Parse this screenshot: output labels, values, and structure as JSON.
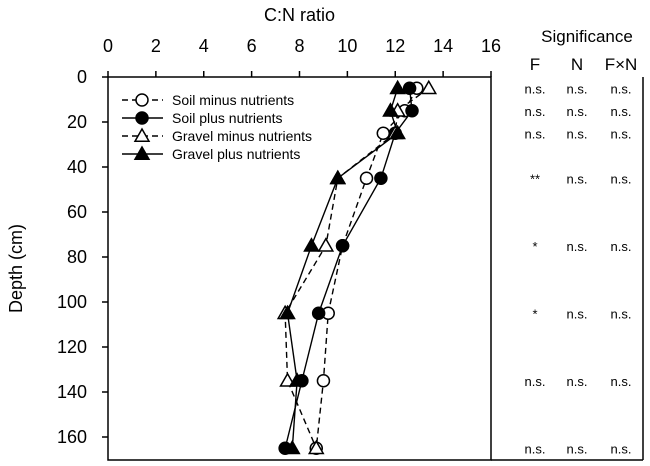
{
  "chart_data": {
    "type": "line",
    "xlabel": "C:N ratio",
    "ylabel": "Depth (cm)",
    "xlim": [
      0,
      16
    ],
    "ylim": [
      0,
      170
    ],
    "x_axis_position": "top",
    "y_axis_inverted": true,
    "xticks": [
      "0",
      "2",
      "4",
      "6",
      "8",
      "10",
      "12",
      "14",
      "16"
    ],
    "yticks": [
      "0",
      "20",
      "40",
      "60",
      "80",
      "100",
      "120",
      "140",
      "160"
    ],
    "xtick_values": [
      0,
      2,
      4,
      6,
      8,
      10,
      12,
      14,
      16
    ],
    "ytick_values": [
      0,
      20,
      40,
      60,
      80,
      100,
      120,
      140,
      160
    ],
    "grid": false,
    "legend_position": "top-left",
    "series": [
      {
        "name": "Soil minus nutrients",
        "marker": "circle-open",
        "line": "dashed",
        "points": [
          {
            "x": 12.9,
            "y": 5
          },
          {
            "x": 12.4,
            "y": 15
          },
          {
            "x": 11.5,
            "y": 25
          },
          {
            "x": 10.8,
            "y": 45
          },
          {
            "x": 9.8,
            "y": 75
          },
          {
            "x": 9.2,
            "y": 105
          },
          {
            "x": 9.0,
            "y": 135
          },
          {
            "x": 8.7,
            "y": 165
          }
        ]
      },
      {
        "name": "Soil plus nutrients",
        "marker": "circle-filled",
        "line": "solid",
        "points": [
          {
            "x": 12.6,
            "y": 5
          },
          {
            "x": 12.7,
            "y": 15
          },
          {
            "x": 12.0,
            "y": 25
          },
          {
            "x": 11.4,
            "y": 45
          },
          {
            "x": 9.8,
            "y": 75
          },
          {
            "x": 8.8,
            "y": 105
          },
          {
            "x": 8.1,
            "y": 135
          },
          {
            "x": 7.4,
            "y": 165
          }
        ]
      },
      {
        "name": "Gravel minus nutrients",
        "marker": "triangle-open",
        "line": "dashed",
        "points": [
          {
            "x": 13.4,
            "y": 5
          },
          {
            "x": 12.1,
            "y": 15
          },
          {
            "x": 12.0,
            "y": 25
          },
          {
            "x": 9.6,
            "y": 45
          },
          {
            "x": 9.1,
            "y": 75
          },
          {
            "x": 7.4,
            "y": 105
          },
          {
            "x": 7.5,
            "y": 135
          },
          {
            "x": 8.7,
            "y": 165
          }
        ]
      },
      {
        "name": "Gravel plus nutrients",
        "marker": "triangle-filled",
        "line": "solid",
        "points": [
          {
            "x": 12.1,
            "y": 5
          },
          {
            "x": 11.8,
            "y": 15
          },
          {
            "x": 12.1,
            "y": 25
          },
          {
            "x": 9.6,
            "y": 45
          },
          {
            "x": 8.5,
            "y": 75
          },
          {
            "x": 7.5,
            "y": 105
          },
          {
            "x": 7.9,
            "y": 135
          },
          {
            "x": 7.7,
            "y": 165
          }
        ]
      }
    ]
  },
  "significance": {
    "title": "Significance",
    "columns": [
      "F",
      "N",
      "F×N"
    ],
    "rows": [
      {
        "depth": 5,
        "values": [
          "n.s.",
          "n.s.",
          "n.s."
        ]
      },
      {
        "depth": 15,
        "values": [
          "n.s.",
          "n.s.",
          "n.s."
        ]
      },
      {
        "depth": 25,
        "values": [
          "n.s.",
          "n.s.",
          "n.s."
        ]
      },
      {
        "depth": 45,
        "values": [
          "**",
          "n.s.",
          "n.s."
        ]
      },
      {
        "depth": 75,
        "values": [
          "*",
          "n.s.",
          "n.s."
        ]
      },
      {
        "depth": 105,
        "values": [
          "*",
          "n.s.",
          "n.s."
        ]
      },
      {
        "depth": 135,
        "values": [
          "n.s.",
          "n.s.",
          "n.s."
        ]
      },
      {
        "depth": 165,
        "values": [
          "n.s.",
          "n.s.",
          "n.s."
        ]
      }
    ]
  }
}
